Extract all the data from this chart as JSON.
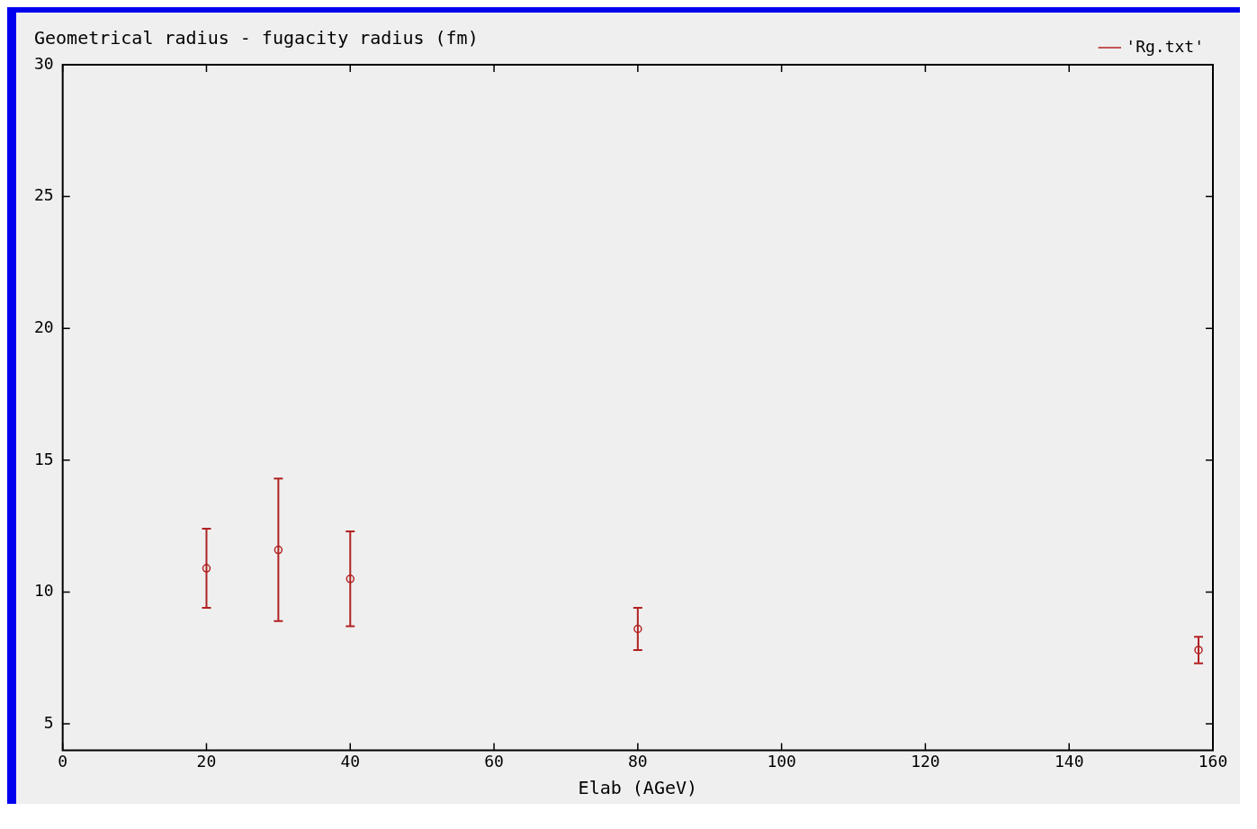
{
  "chart_data": {
    "type": "scatter",
    "ylabel": "Geometrical radius - fugacity radius (fm)",
    "xlabel": "Elab (AGeV)",
    "x": [
      20,
      30,
      40,
      80,
      158
    ],
    "series": [
      {
        "name": "'Rg.txt'",
        "color": "#b22222",
        "values": [
          10.9,
          11.6,
          10.5,
          8.6,
          7.8
        ],
        "errors": [
          1.5,
          2.7,
          1.8,
          0.8,
          0.5
        ]
      }
    ],
    "xlim": [
      0,
      160
    ],
    "xticks": [
      0,
      20,
      40,
      60,
      80,
      100,
      120,
      140,
      160
    ],
    "ylim": [
      4,
      30
    ],
    "yticks": [
      5,
      10,
      15,
      20,
      25,
      30
    ],
    "grid": false,
    "legend": "top right",
    "marker": "circle"
  }
}
